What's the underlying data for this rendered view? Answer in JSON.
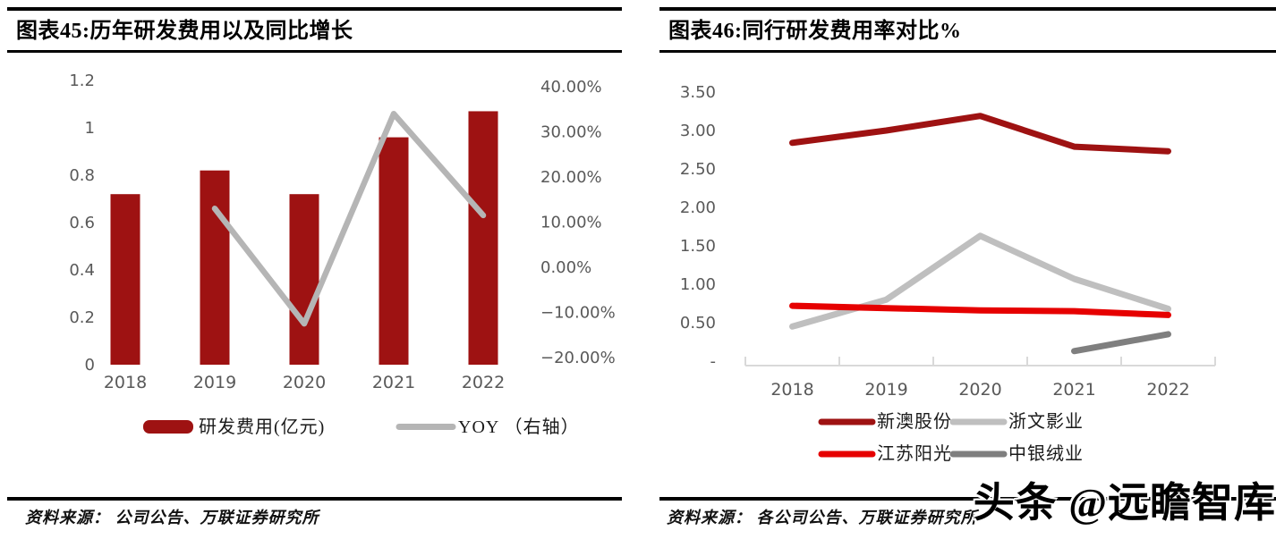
{
  "watermark": "头条 @远瞻智库",
  "panels": {
    "left": {
      "title": "图表45:历年研发费用以及同比增长",
      "source": "资料来源： 公司公告、万联证券研究所"
    },
    "right": {
      "title": "图表46:同行研发费用率对比%",
      "source": "资料来源： 各公司公告、万联证券研究所"
    }
  },
  "chart_data": [
    {
      "type": "bar",
      "subtype": "bar+line combo",
      "title": "图表45:历年研发费用以及同比增长",
      "categories": [
        "2018",
        "2019",
        "2020",
        "2021",
        "2022"
      ],
      "series": [
        {
          "name": "研发费用(亿元)",
          "type": "bar",
          "axis": "left",
          "color": "#9e1212",
          "values": [
            0.72,
            0.82,
            0.72,
            0.96,
            1.07
          ]
        },
        {
          "name": "YOY （右轴）",
          "type": "line",
          "axis": "right",
          "color": "#b5b5b5",
          "values": [
            null,
            13.0,
            -12.5,
            34.0,
            11.5
          ]
        }
      ],
      "left_axis": {
        "ticks": [
          "1.2",
          "1",
          "0.8",
          "0.6",
          "0.4",
          "0.2",
          "0"
        ],
        "min": 0,
        "max": 1.2
      },
      "right_axis": {
        "ticks": [
          "40.00%",
          "30.00%",
          "20.00%",
          "10.00%",
          "0.00%",
          "−10.00%",
          "−20.00%"
        ],
        "min": -20,
        "max": 40
      },
      "grid": false,
      "legend_position": "bottom"
    },
    {
      "type": "line",
      "title": "图表46:同行研发费用率对比%",
      "categories": [
        "2018",
        "2019",
        "2020",
        "2021",
        "2022"
      ],
      "series": [
        {
          "name": "新澳股份",
          "color": "#9e1212",
          "values": [
            2.84,
            3.0,
            3.19,
            2.79,
            2.73
          ]
        },
        {
          "name": "浙文影业",
          "color": "#bfbfbf",
          "values": [
            0.45,
            0.8,
            1.63,
            1.07,
            0.68
          ]
        },
        {
          "name": "江苏阳光",
          "color": "#e60000",
          "values": [
            0.72,
            0.69,
            0.66,
            0.65,
            0.6
          ]
        },
        {
          "name": "中银绒业",
          "color": "#7f7f7f",
          "values": [
            null,
            null,
            null,
            0.13,
            0.35
          ]
        }
      ],
      "y_axis": {
        "ticks": [
          "3.50",
          "3.00",
          "2.50",
          "2.00",
          "1.50",
          "1.00",
          "0.50",
          "-"
        ],
        "min": 0,
        "max": 3.5
      },
      "grid": false,
      "legend_position": "bottom"
    }
  ]
}
